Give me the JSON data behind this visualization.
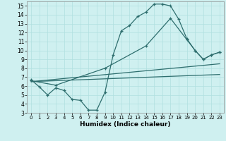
{
  "xlabel": "Humidex (Indice chaleur)",
  "bg_color": "#cff0f0",
  "line_color": "#2e6e6e",
  "xlim": [
    -0.5,
    23.5
  ],
  "ylim": [
    3,
    15.5
  ],
  "xticks": [
    0,
    1,
    2,
    3,
    4,
    5,
    6,
    7,
    8,
    9,
    10,
    11,
    12,
    13,
    14,
    15,
    16,
    17,
    18,
    19,
    20,
    21,
    22,
    23
  ],
  "yticks": [
    3,
    4,
    5,
    6,
    7,
    8,
    9,
    10,
    11,
    12,
    13,
    14,
    15
  ],
  "lines": [
    {
      "x": [
        0,
        1,
        2,
        3,
        4,
        5,
        6,
        7,
        8,
        9,
        10,
        11,
        12,
        13,
        14,
        15,
        16,
        17,
        18,
        19,
        20,
        21,
        22,
        23
      ],
      "y": [
        6.7,
        5.9,
        5.0,
        5.8,
        5.5,
        4.5,
        4.4,
        3.3,
        3.3,
        5.3,
        9.5,
        12.2,
        12.8,
        13.8,
        14.3,
        15.2,
        15.2,
        15.0,
        13.5,
        11.3,
        10.0,
        9.0,
        9.5,
        9.8
      ],
      "marker": true
    },
    {
      "x": [
        0,
        3,
        9,
        14,
        17,
        19,
        20,
        21,
        22,
        23
      ],
      "y": [
        6.6,
        6.1,
        8.0,
        10.5,
        13.6,
        11.2,
        10.0,
        9.0,
        9.5,
        9.8
      ],
      "marker": true
    },
    {
      "x": [
        0,
        23
      ],
      "y": [
        6.5,
        8.5
      ],
      "marker": false
    },
    {
      "x": [
        0,
        23
      ],
      "y": [
        6.5,
        7.3
      ],
      "marker": false
    }
  ]
}
